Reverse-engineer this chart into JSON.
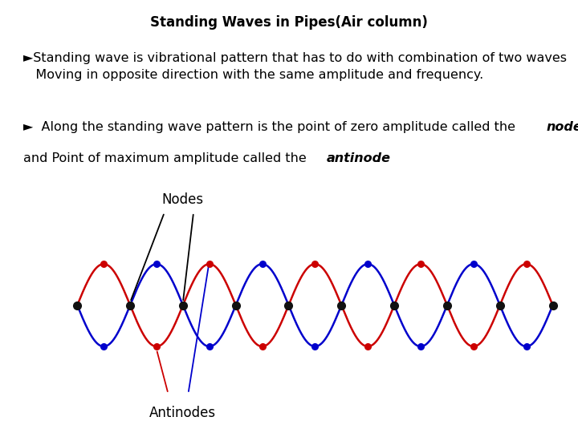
{
  "title": "Standing Waves in Pipes(Air column)",
  "title_fontsize": 12,
  "bg_color": "#ffffff",
  "text1": "►Standing wave is vibrational pattern that has to do with combination of two waves\n   Moving in opposite direction with the same amplitude and frequency.",
  "text2_pre": "►  Along the standing wave pattern is the point of zero amplitude called the ",
  "text2_bold": "node",
  "text2_pre2": "and Point of maximum amplitude called the ",
  "text2_bold2": "antinode",
  "text2_end": ".",
  "wave_color_red": "#cc0000",
  "wave_color_blue": "#0000cc",
  "node_color": "#111111",
  "nodes_label": "Nodes",
  "antinodes_label": "Antinodes",
  "n_halfperiods": 9,
  "wave_amplitude": 0.28,
  "text_fontsize": 11.5,
  "label_fontsize": 12
}
